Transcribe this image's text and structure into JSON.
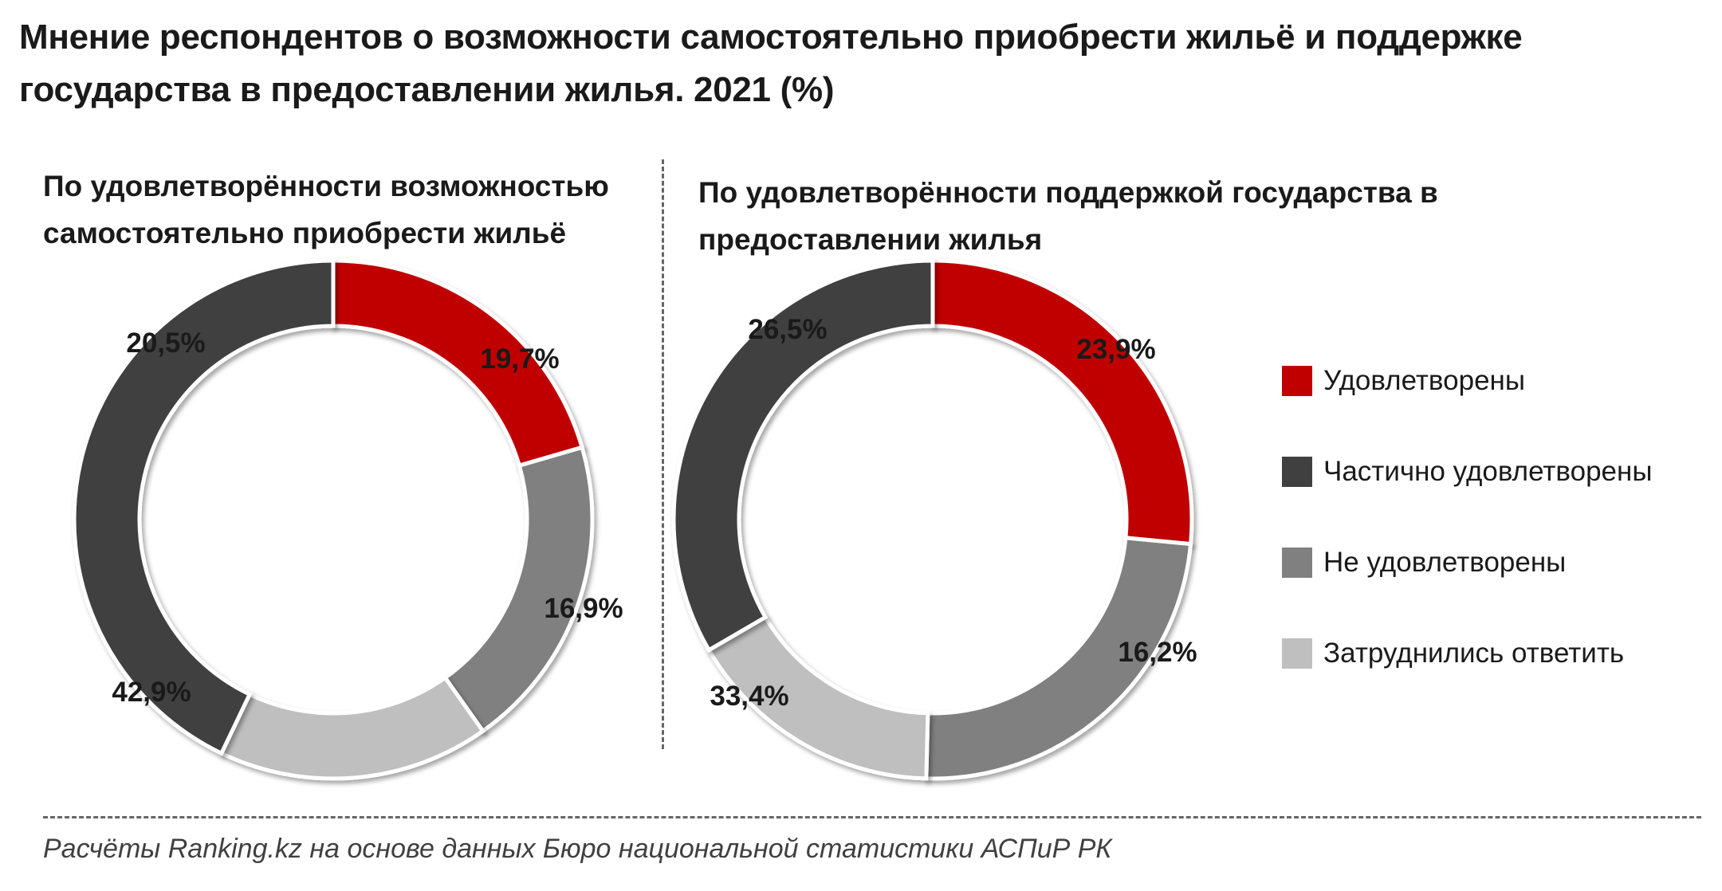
{
  "title": "Мнение респондентов о возможности самостоятельно приобрести жильё и поддержке государства в предоставлении жилья. 2021 (%)",
  "source": "Расчёты Ranking.kz на основе данных Бюро национальной статистики АСПиР РК",
  "legend": [
    {
      "label": "Удовлетворены",
      "color": "#c00000"
    },
    {
      "label": "Частично удовлетворены",
      "color": "#404040"
    },
    {
      "label": "Не удовлетворены",
      "color": "#808080"
    },
    {
      "label": "Затруднились ответить",
      "color": "#bfbfbf"
    }
  ],
  "chart_data": [
    {
      "type": "pie",
      "subtype": "donut",
      "title": "По удовлетворённости возможностью самостоятельно приобрести жильё",
      "categories": [
        "Удовлетворены",
        "Не удовлетворены",
        "Затруднились ответить",
        "Частично удовлетворены"
      ],
      "values": [
        20.5,
        19.7,
        16.9,
        42.9
      ],
      "value_labels": [
        "20,5%",
        "19,7%",
        "16,9%",
        "42,9%"
      ],
      "colors": [
        "#c00000",
        "#808080",
        "#bfbfbf",
        "#404040"
      ]
    },
    {
      "type": "pie",
      "subtype": "donut",
      "title": "По удовлетворённости поддержкой государства в предоставлении жилья",
      "categories": [
        "Удовлетворены",
        "Не удовлетворены",
        "Затруднились ответить",
        "Частично удовлетворены"
      ],
      "values": [
        26.5,
        23.9,
        16.2,
        33.4
      ],
      "value_labels": [
        "26,5%",
        "23,9%",
        "16,2%",
        "33,4%"
      ],
      "colors": [
        "#c00000",
        "#808080",
        "#bfbfbf",
        "#404040"
      ]
    }
  ]
}
